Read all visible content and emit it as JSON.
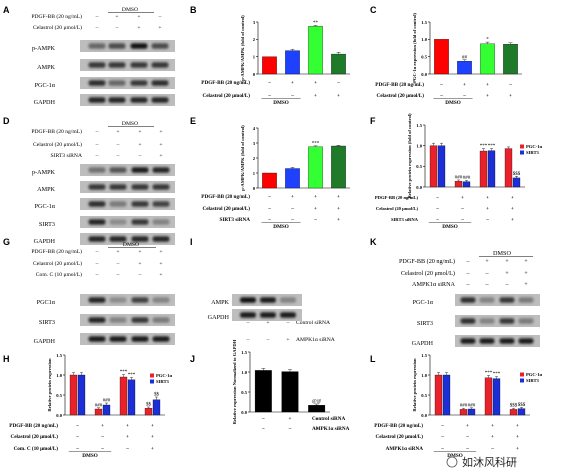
{
  "panels": {
    "A": {
      "label": "A",
      "conditions": [
        "PDGF-BB (20 ng/mL)",
        "Celastrol (20 μmol/L)"
      ],
      "signs": [
        [
          "–",
          "+",
          "+",
          "–"
        ],
        [
          "–",
          "–",
          "+",
          "+"
        ]
      ],
      "group_label": "DMSO",
      "bands": [
        "p-AMPK",
        "AMPK",
        "PGC-1α",
        "GAPDH"
      ]
    },
    "B": {
      "label": "B",
      "conditions": [
        "PDGF-BB (20 ng/mL)",
        "Celastrol (20 μmol/L)"
      ],
      "signs": [
        [
          "–",
          "+",
          "+",
          "–"
        ],
        [
          "–",
          "–",
          "+",
          "+"
        ]
      ],
      "group_label": "DMSO",
      "sig": [
        "",
        "",
        "**",
        ""
      ]
    },
    "C": {
      "label": "C",
      "conditions": [
        "PDGF-BB (20 ng/mL)",
        "Celastrol (20 μmol/L)"
      ],
      "signs": [
        [
          "–",
          "+",
          "+",
          "–"
        ],
        [
          "–",
          "–",
          "+",
          "+"
        ]
      ],
      "group_label": "DMSO",
      "sig": [
        "",
        "##",
        "*",
        ""
      ]
    },
    "D": {
      "label": "D",
      "conditions": [
        "PDGF-BB (20 ng/mL)",
        "Celastrol (20 μmol/L)",
        "SIRT3 siRNA"
      ],
      "signs": [
        [
          "–",
          "+",
          "+",
          "+"
        ],
        [
          "–",
          "–",
          "+",
          "+"
        ],
        [
          "–",
          "–",
          "–",
          "+"
        ]
      ],
      "group_label": "DMSO",
      "bands": [
        "p-AMPK",
        "AMPK",
        "PGC-1α",
        "SIRT3",
        "GAPDH"
      ]
    },
    "E": {
      "label": "E",
      "conditions": [
        "PDGF-BB (20 ng/mL)",
        "Celastrol (20 μmol/L)",
        "SIRT3 siRNA"
      ],
      "signs": [
        [
          "–",
          "+",
          "+",
          "+"
        ],
        [
          "–",
          "–",
          "+",
          "+"
        ],
        [
          "–",
          "–",
          "–",
          "+"
        ]
      ],
      "group_label": "DMSO",
      "sig": [
        "",
        "",
        "***",
        ""
      ]
    },
    "F": {
      "label": "F",
      "conditions": [
        "PDGF-BB (20 ng/mL)",
        "Celastrol (20 μmol/L)",
        "SIRT3 siRNA"
      ],
      "signs": [
        [
          "–",
          "+",
          "+",
          "+"
        ],
        [
          "–",
          "–",
          "+",
          "+"
        ],
        [
          "–",
          "–",
          "–",
          "+"
        ]
      ],
      "group_label": "DMSO",
      "sig": [
        [
          "",
          ""
        ],
        [
          "###",
          "###"
        ],
        [
          "***",
          "***"
        ],
        [
          "",
          "$$$"
        ]
      ]
    },
    "G": {
      "label": "G",
      "conditions": [
        "PDGF-BB (20 ng/mL)",
        "Celastrol (20 μmol/L)",
        "Com. C (10 μmol/L)"
      ],
      "signs": [
        [
          "–",
          "+",
          "+",
          "+"
        ],
        [
          "–",
          "–",
          "+",
          "+"
        ],
        [
          "–",
          "–",
          "–",
          "+"
        ]
      ],
      "group_label": "DMSO",
      "bands": [
        "PGC1α",
        "SIRT3",
        "GAPDH"
      ]
    },
    "H": {
      "label": "H",
      "conditions": [
        "PDGF-BB (20 ng/mL)",
        "Celastrol (20 μmol/L)",
        "Com. C (10 μmol/L)"
      ],
      "signs": [
        [
          "–",
          "+",
          "+",
          "+"
        ],
        [
          "–",
          "–",
          "+",
          "+"
        ],
        [
          "–",
          "–",
          "–",
          "+"
        ]
      ],
      "group_label": "DMSO",
      "sig": [
        [
          "",
          ""
        ],
        [
          "###",
          "###"
        ],
        [
          "***",
          "***"
        ],
        [
          "$$",
          "$$"
        ]
      ]
    },
    "I": {
      "label": "I",
      "conditions": [
        "Control siRNA",
        "AMPK1α siRNA"
      ],
      "signs": [
        [
          "–",
          "+",
          "–"
        ],
        [
          "–",
          "–",
          "+"
        ]
      ],
      "bands": [
        "AMPK",
        "GAPDH"
      ]
    },
    "J": {
      "label": "J",
      "conditions": [
        "Control siRNA",
        "AMPK1α siRNA"
      ],
      "signs": [
        [
          "–",
          "+",
          "–"
        ],
        [
          "–",
          "–",
          "+"
        ]
      ],
      "sig": [
        "",
        "",
        "@@"
      ]
    },
    "K": {
      "label": "K",
      "conditions": [
        "PDGF-BB (20 ng/mL)",
        "Celastrol (20 μmol/L)",
        "AMPK1α siRNA"
      ],
      "signs": [
        [
          "–",
          "+",
          "+",
          "+"
        ],
        [
          "–",
          "–",
          "+",
          "+"
        ],
        [
          "–",
          "–",
          "–",
          "+"
        ]
      ],
      "group_label": "DMSO",
      "bands": [
        "PGC-1α",
        "SIRT3",
        "GAPDH"
      ]
    },
    "L": {
      "label": "L",
      "conditions": [
        "PDGF-BB (20 ng/mL)",
        "Celastrol (20 μmol/L)",
        "AMPK1α siRNA"
      ],
      "signs": [
        [
          "–",
          "+",
          "+",
          "+"
        ],
        [
          "–",
          "–",
          "+",
          "+"
        ],
        [
          "–",
          "–",
          "–",
          "+"
        ]
      ],
      "group_label": "DMSO",
      "sig": [
        [
          "",
          ""
        ],
        [
          "###",
          "###"
        ],
        [
          "***",
          "***"
        ],
        [
          "$$$",
          "$$$"
        ]
      ]
    }
  },
  "chart_data": [
    {
      "panel": "B",
      "type": "bar",
      "ylabel": "p-AMPK/AMPK (fold of control)",
      "ylim": [
        0,
        3
      ],
      "yticks": [
        0,
        1,
        2,
        3
      ],
      "values": [
        1.0,
        1.35,
        2.75,
        1.15
      ],
      "errors": [
        0.0,
        0.08,
        0.06,
        0.1
      ],
      "colors": [
        "#ff0000",
        "#1e40ff",
        "#33ff33",
        "#1f7a2a"
      ]
    },
    {
      "panel": "C",
      "type": "bar",
      "ylabel": "PGC-1α expression (fold of control)",
      "ylim": [
        0,
        1.5
      ],
      "yticks": [
        0.0,
        0.5,
        1.0,
        1.5
      ],
      "values": [
        1.0,
        0.37,
        0.87,
        0.86
      ],
      "errors": [
        0.0,
        0.04,
        0.05,
        0.04
      ],
      "colors": [
        "#ff0000",
        "#1e40ff",
        "#33ff33",
        "#1f7a2a"
      ]
    },
    {
      "panel": "E",
      "type": "bar",
      "ylabel": "p-AMPK/AMPK (fold of control)",
      "ylim": [
        0,
        4
      ],
      "yticks": [
        0,
        1,
        2,
        3,
        4
      ],
      "values": [
        1.0,
        1.3,
        2.75,
        2.8
      ],
      "errors": [
        0.0,
        0.08,
        0.06,
        0.05
      ],
      "colors": [
        "#ff0000",
        "#1e40ff",
        "#33ff33",
        "#1f7a2a"
      ]
    },
    {
      "panel": "F",
      "type": "bar",
      "ylabel": "Relative protein expression (fold of control)",
      "ylim": [
        0,
        1.5
      ],
      "yticks": [
        0.0,
        0.5,
        1.0,
        1.5
      ],
      "series": [
        {
          "name": "PGC-1α",
          "color": "#e8212b",
          "values": [
            1.0,
            0.14,
            0.87,
            0.93
          ],
          "errors": [
            0.06,
            0.03,
            0.06,
            0.04
          ]
        },
        {
          "name": "SIRT3",
          "color": "#1c2fd6",
          "values": [
            1.0,
            0.13,
            0.88,
            0.22
          ],
          "errors": [
            0.06,
            0.03,
            0.05,
            0.04
          ]
        }
      ]
    },
    {
      "panel": "H",
      "type": "bar",
      "ylabel": "Relative protein expression",
      "ylim": [
        0,
        1.5
      ],
      "yticks": [
        0.0,
        0.5,
        1.0,
        1.5
      ],
      "series": [
        {
          "name": "PGC-1α",
          "color": "#e8212b",
          "values": [
            1.0,
            0.15,
            0.95,
            0.17
          ],
          "errors": [
            0.06,
            0.03,
            0.06,
            0.03
          ]
        },
        {
          "name": "SIRT3",
          "color": "#1c2fd6",
          "values": [
            1.0,
            0.25,
            0.88,
            0.38
          ],
          "errors": [
            0.06,
            0.05,
            0.06,
            0.07
          ]
        }
      ]
    },
    {
      "panel": "J",
      "type": "bar",
      "ylabel": "Relative expression Normalized to GAPDH",
      "ylim": [
        0,
        1.5
      ],
      "yticks": [
        0.0,
        0.5,
        1.0,
        1.5
      ],
      "values": [
        1.04,
        1.01,
        0.17
      ],
      "errors": [
        0.05,
        0.05,
        0.03
      ],
      "colors": [
        "#000000",
        "#000000",
        "#000000"
      ]
    },
    {
      "panel": "L",
      "type": "bar",
      "ylabel": "Relative protein expression",
      "ylim": [
        0,
        1.5
      ],
      "yticks": [
        0.0,
        0.5,
        1.0,
        1.5
      ],
      "series": [
        {
          "name": "PGC-1α",
          "color": "#e8212b",
          "values": [
            1.0,
            0.14,
            0.93,
            0.14
          ],
          "errors": [
            0.06,
            0.03,
            0.06,
            0.03
          ]
        },
        {
          "name": "SIRT3",
          "color": "#1c2fd6",
          "values": [
            1.0,
            0.15,
            0.91,
            0.16
          ],
          "errors": [
            0.06,
            0.03,
            0.05,
            0.03
          ]
        }
      ]
    }
  ],
  "watermark": "如沐风科研"
}
